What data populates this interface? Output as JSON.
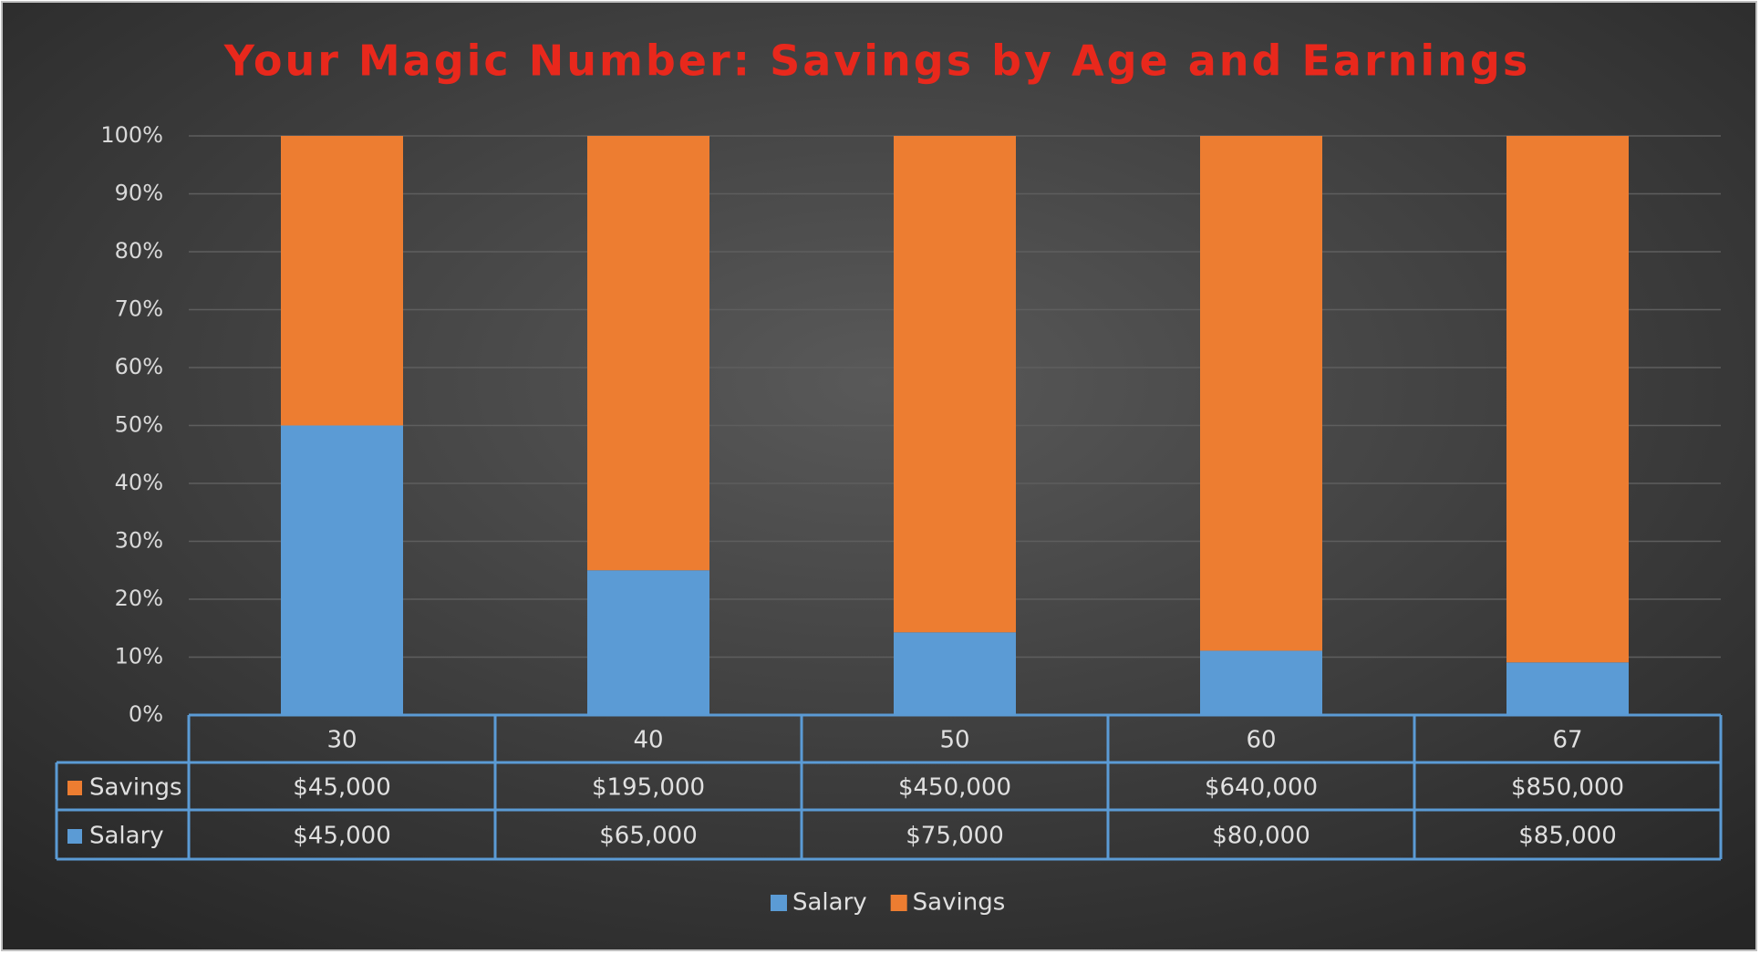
{
  "chart_data": {
    "type": "bar",
    "stacking": "percent",
    "title": "Your Magic Number: Savings by Age and Earnings",
    "categories": [
      "30",
      "40",
      "50",
      "60",
      "67"
    ],
    "series": [
      {
        "name": "Salary",
        "color": "#5b9bd5",
        "values": [
          45000,
          65000,
          75000,
          80000,
          85000
        ],
        "value_labels": [
          "$45,000",
          "$65,000",
          "$75,000",
          "$80,000",
          "$85,000"
        ]
      },
      {
        "name": "Savings",
        "color": "#ed7d31",
        "values": [
          45000,
          195000,
          450000,
          640000,
          850000
        ],
        "value_labels": [
          "$45,000",
          "$195,000",
          "$450,000",
          "$640,000",
          "$850,000"
        ]
      }
    ],
    "ylim": [
      0,
      100
    ],
    "yticks": [
      {
        "value": 0,
        "label": "0%"
      },
      {
        "value": 10,
        "label": "10%"
      },
      {
        "value": 20,
        "label": "20%"
      },
      {
        "value": 30,
        "label": "30%"
      },
      {
        "value": 40,
        "label": "40%"
      },
      {
        "value": 50,
        "label": "50%"
      },
      {
        "value": 60,
        "label": "60%"
      },
      {
        "value": 70,
        "label": "70%"
      },
      {
        "value": 80,
        "label": "80%"
      },
      {
        "value": 90,
        "label": "90%"
      },
      {
        "value": 100,
        "label": "100%"
      }
    ],
    "grid": true,
    "legend": "bottom",
    "data_table": true
  }
}
